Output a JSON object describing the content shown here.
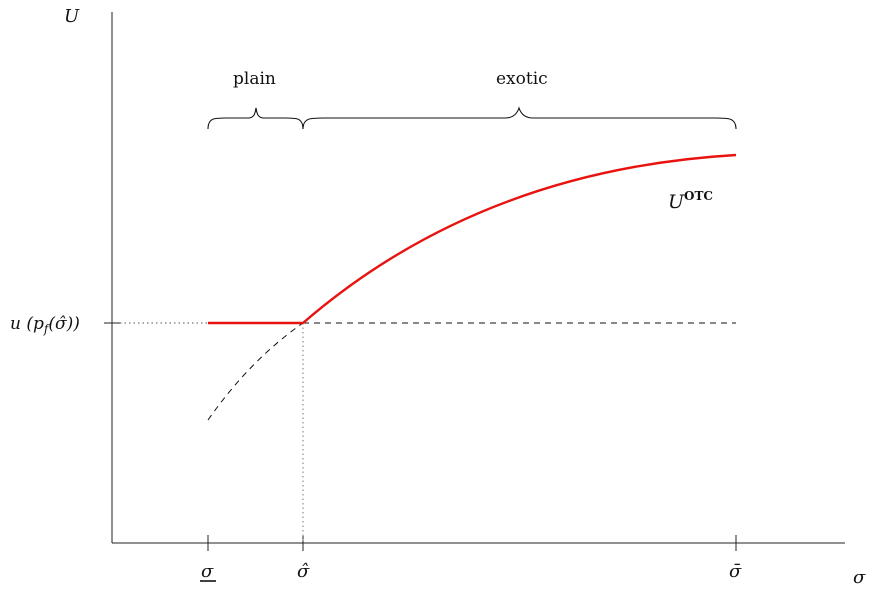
{
  "axes": {
    "y_label": "U",
    "x_label": "σ"
  },
  "regions": {
    "plain": "plain",
    "exotic": "exotic"
  },
  "curve": {
    "label_base": "U",
    "label_sup": "OTC",
    "color": "#e8130f"
  },
  "level": {
    "label": "u (p_f(σ̂))",
    "label_main": "u (p",
    "label_sub": "f",
    "label_rest": "(σ̂))"
  },
  "ticks": {
    "sigma_low": "σ",
    "sigma_hat": "σ̂",
    "sigma_bar": "σ̄"
  }
}
